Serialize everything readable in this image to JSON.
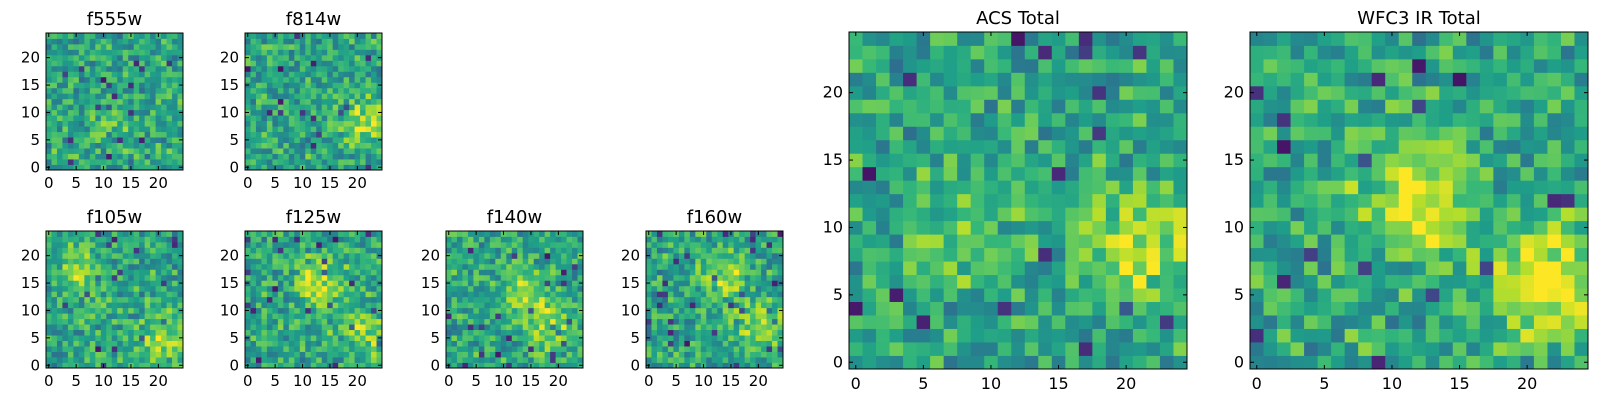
{
  "chart_data": [
    {
      "type": "heatmap",
      "title": "f555w",
      "grid_size": 25,
      "xlim": [
        0,
        24
      ],
      "ylim": [
        0,
        24
      ],
      "xticks": [
        "0",
        "5",
        "10",
        "15",
        "20"
      ],
      "yticks": [
        "0",
        "5",
        "10",
        "15",
        "20"
      ],
      "colormap": "viridis",
      "value_range": [
        0,
        1
      ],
      "seed": 11,
      "features": [
        {
          "x": 11,
          "y": 9,
          "amp": 0.1
        }
      ]
    },
    {
      "type": "heatmap",
      "title": "f814w",
      "grid_size": 25,
      "xlim": [
        0,
        24
      ],
      "ylim": [
        0,
        24
      ],
      "xticks": [
        "0",
        "5",
        "10",
        "15",
        "20"
      ],
      "yticks": [
        "0",
        "5",
        "10",
        "15",
        "20"
      ],
      "colormap": "viridis",
      "value_range": [
        0,
        1
      ],
      "seed": 23,
      "features": [
        {
          "x": 21,
          "y": 8,
          "amp": 0.3
        }
      ]
    },
    {
      "type": "heatmap",
      "title": "f105w",
      "grid_size": 25,
      "xlim": [
        0,
        24
      ],
      "ylim": [
        0,
        24
      ],
      "xticks": [
        "0",
        "5",
        "10",
        "15",
        "20"
      ],
      "yticks": [
        "0",
        "5",
        "10",
        "15",
        "20"
      ],
      "colormap": "viridis",
      "value_range": [
        0,
        1
      ],
      "seed": 37,
      "features": [
        {
          "x": 6,
          "y": 17,
          "amp": 0.25
        },
        {
          "x": 21,
          "y": 5,
          "amp": 0.3
        }
      ]
    },
    {
      "type": "heatmap",
      "title": "f125w",
      "grid_size": 25,
      "xlim": [
        0,
        24
      ],
      "ylim": [
        0,
        24
      ],
      "xticks": [
        "0",
        "5",
        "10",
        "15",
        "20"
      ],
      "yticks": [
        "0",
        "5",
        "10",
        "15",
        "20"
      ],
      "colormap": "viridis",
      "value_range": [
        0,
        1
      ],
      "seed": 41,
      "features": [
        {
          "x": 13,
          "y": 15,
          "amp": 0.3
        },
        {
          "x": 21,
          "y": 6,
          "amp": 0.25
        }
      ]
    },
    {
      "type": "heatmap",
      "title": "f140w",
      "grid_size": 25,
      "xlim": [
        0,
        24
      ],
      "ylim": [
        0,
        24
      ],
      "xticks": [
        "0",
        "5",
        "10",
        "15",
        "20"
      ],
      "yticks": [
        "0",
        "5",
        "10",
        "15",
        "20"
      ],
      "colormap": "viridis",
      "value_range": [
        0,
        1
      ],
      "seed": 53,
      "features": [
        {
          "x": 14,
          "y": 13,
          "amp": 0.25
        },
        {
          "x": 19,
          "y": 7,
          "amp": 0.25
        }
      ]
    },
    {
      "type": "heatmap",
      "title": "f160w",
      "grid_size": 25,
      "xlim": [
        0,
        24
      ],
      "ylim": [
        0,
        24
      ],
      "xticks": [
        "0",
        "5",
        "10",
        "15",
        "20"
      ],
      "yticks": [
        "0",
        "5",
        "10",
        "15",
        "20"
      ],
      "colormap": "viridis",
      "value_range": [
        0,
        1
      ],
      "seed": 67,
      "features": [
        {
          "x": 14,
          "y": 16,
          "amp": 0.25
        },
        {
          "x": 21,
          "y": 7,
          "amp": 0.3
        }
      ]
    },
    {
      "type": "heatmap",
      "title": "ACS Total",
      "grid_size": 25,
      "xlim": [
        0,
        24
      ],
      "ylim": [
        0,
        24
      ],
      "xticks": [
        "0",
        "5",
        "10",
        "15",
        "20"
      ],
      "yticks": [
        "0",
        "5",
        "10",
        "15",
        "20"
      ],
      "colormap": "viridis",
      "value_range": [
        0,
        1
      ],
      "seed": 79,
      "features": [
        {
          "x": 21,
          "y": 8,
          "amp": 0.3
        },
        {
          "x": 8,
          "y": 10,
          "amp": 0.15
        }
      ]
    },
    {
      "type": "heatmap",
      "title": "WFC3 IR Total",
      "grid_size": 25,
      "xlim": [
        0,
        24
      ],
      "ylim": [
        0,
        24
      ],
      "xticks": [
        "0",
        "5",
        "10",
        "15",
        "20"
      ],
      "yticks": [
        "0",
        "5",
        "10",
        "15",
        "20"
      ],
      "colormap": "viridis",
      "value_range": [
        0,
        1
      ],
      "seed": 97,
      "features": [
        {
          "x": 12,
          "y": 12,
          "amp": 0.4
        },
        {
          "x": 22,
          "y": 6,
          "amp": 0.4
        }
      ]
    }
  ]
}
